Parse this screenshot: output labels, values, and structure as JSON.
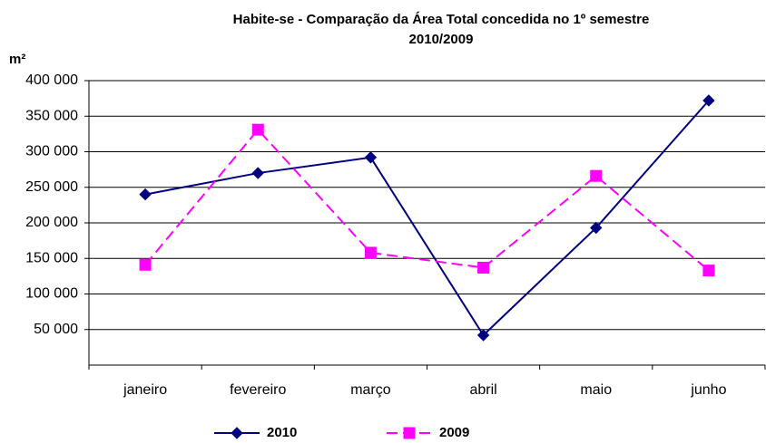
{
  "chart_data": {
    "type": "line",
    "title": [
      "Habite-se - Comparação da Área Total concedida no 1º semestre",
      "2010/2009"
    ],
    "ylabel": "m²",
    "categories": [
      "janeiro",
      "fevereiro",
      "março",
      "abril",
      "maio",
      "junho"
    ],
    "series": [
      {
        "name": "2010",
        "color": "#000080",
        "dashed": false,
        "marker": "diamond",
        "values": [
          240000,
          270000,
          292000,
          42000,
          193000,
          372000
        ]
      },
      {
        "name": "2009",
        "color": "#ff00ff",
        "dashed": true,
        "marker": "square",
        "values": [
          141000,
          331000,
          158000,
          137000,
          266000,
          133000
        ]
      }
    ],
    "ylim": [
      0,
      400000
    ],
    "yticks": [
      {
        "value": 50000,
        "label": "50 000"
      },
      {
        "value": 100000,
        "label": "100 000"
      },
      {
        "value": 150000,
        "label": "150 000"
      },
      {
        "value": 200000,
        "label": "200 000"
      },
      {
        "value": 250000,
        "label": "250 000"
      },
      {
        "value": 300000,
        "label": "300 000"
      },
      {
        "value": 350000,
        "label": "350 000"
      },
      {
        "value": 400000,
        "label": "400 000"
      }
    ],
    "grid": true
  }
}
